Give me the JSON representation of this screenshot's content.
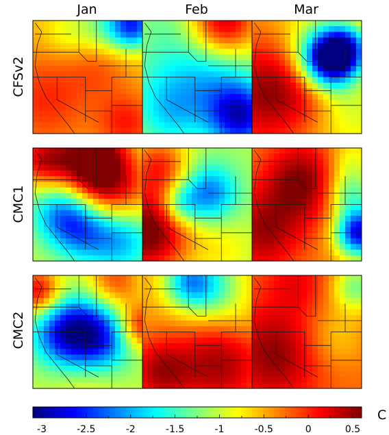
{
  "chart_data": {
    "type": "heatmap",
    "columns": [
      "Jan",
      "Feb",
      "Mar"
    ],
    "rows": [
      "CFSv2",
      "CMC1",
      "CMC2"
    ],
    "colorbar": {
      "ticks": [
        "-3",
        "-2.5",
        "-2",
        "-1.5",
        "-1",
        "-0.5",
        "0",
        "0.5"
      ],
      "tick_values": [
        -3,
        -2.5,
        -2,
        -1.5,
        -1,
        -0.5,
        0,
        0.5
      ],
      "vmin": -3.1,
      "vmax": 0.6,
      "unit": "C",
      "colormap": "jet"
    },
    "grid_size": [
      20,
      20
    ],
    "panels": [
      {
        "row": "CFSv2",
        "col": "Jan",
        "base": -0.55,
        "blobs": [
          {
            "x": 0.12,
            "y": 0.7,
            "r": 0.3,
            "a": 0.55
          },
          {
            "x": 0.85,
            "y": 0.9,
            "r": 0.18,
            "a": 0.6
          },
          {
            "x": 0.62,
            "y": 0.4,
            "r": 0.2,
            "a": 0.35
          },
          {
            "x": 0.92,
            "y": 0.04,
            "r": 0.15,
            "a": -1.8
          },
          {
            "x": 0.65,
            "y": 0.05,
            "r": 0.18,
            "a": -0.7
          },
          {
            "x": 0.3,
            "y": 0.12,
            "r": 0.15,
            "a": -0.3
          }
        ]
      },
      {
        "row": "CFSv2",
        "col": "Feb",
        "base": -1.0,
        "blobs": [
          {
            "x": 0.75,
            "y": 0.02,
            "r": 0.22,
            "a": 1.4
          },
          {
            "x": 0.2,
            "y": 0.05,
            "r": 0.22,
            "a": -0.25
          },
          {
            "x": 0.6,
            "y": 0.55,
            "r": 0.3,
            "a": -0.9
          },
          {
            "x": 0.9,
            "y": 0.85,
            "r": 0.2,
            "a": -1.6
          },
          {
            "x": 0.1,
            "y": 0.6,
            "r": 0.25,
            "a": -0.3
          },
          {
            "x": 0.25,
            "y": 0.85,
            "r": 0.2,
            "a": -0.5
          }
        ]
      },
      {
        "row": "CFSv2",
        "col": "Mar",
        "base": -0.45,
        "blobs": [
          {
            "x": 0.12,
            "y": 0.65,
            "r": 0.32,
            "a": 0.95
          },
          {
            "x": 0.55,
            "y": 0.58,
            "r": 0.2,
            "a": 0.4
          },
          {
            "x": 0.68,
            "y": 0.36,
            "r": 0.18,
            "a": -2.6
          },
          {
            "x": 0.85,
            "y": 0.25,
            "r": 0.15,
            "a": -1.8
          },
          {
            "x": 0.9,
            "y": 0.8,
            "r": 0.25,
            "a": -0.5
          },
          {
            "x": 0.5,
            "y": 0.05,
            "r": 0.2,
            "a": -0.3
          }
        ]
      },
      {
        "row": "CMC1",
        "col": "Jan",
        "base": -1.0,
        "blobs": [
          {
            "x": 0.65,
            "y": 0.4,
            "r": 0.3,
            "a": 1.6
          },
          {
            "x": 0.55,
            "y": 0.05,
            "r": 0.2,
            "a": 1.3
          },
          {
            "x": 0.1,
            "y": 0.1,
            "r": 0.18,
            "a": 1.2
          },
          {
            "x": 0.25,
            "y": 0.55,
            "r": 0.2,
            "a": -1.1
          },
          {
            "x": 0.45,
            "y": 0.7,
            "r": 0.2,
            "a": -1.4
          },
          {
            "x": 0.8,
            "y": 0.78,
            "r": 0.22,
            "a": -1.3
          }
        ]
      },
      {
        "row": "CMC1",
        "col": "Feb",
        "base": -1.1,
        "blobs": [
          {
            "x": 0.05,
            "y": 0.75,
            "r": 0.28,
            "a": 1.8
          },
          {
            "x": 0.15,
            "y": 0.15,
            "r": 0.2,
            "a": 1.0
          },
          {
            "x": 0.6,
            "y": 0.4,
            "r": 0.18,
            "a": -1.2
          },
          {
            "x": 0.35,
            "y": 0.5,
            "r": 0.12,
            "a": -0.8
          },
          {
            "x": 0.75,
            "y": 0.9,
            "r": 0.2,
            "a": 0.3
          }
        ]
      },
      {
        "row": "CMC1",
        "col": "Mar",
        "base": -0.35,
        "blobs": [
          {
            "x": 0.45,
            "y": 0.3,
            "r": 0.25,
            "a": 0.95
          },
          {
            "x": 0.1,
            "y": 0.75,
            "r": 0.25,
            "a": 0.8
          },
          {
            "x": 0.98,
            "y": 0.75,
            "r": 0.15,
            "a": -2.4
          },
          {
            "x": 0.9,
            "y": 0.4,
            "r": 0.15,
            "a": -1.0
          },
          {
            "x": 0.9,
            "y": 0.1,
            "r": 0.15,
            "a": -0.5
          }
        ]
      },
      {
        "row": "CMC2",
        "col": "Jan",
        "base": -1.0,
        "blobs": [
          {
            "x": 0.3,
            "y": 0.5,
            "r": 0.22,
            "a": -1.6
          },
          {
            "x": 0.62,
            "y": 0.55,
            "r": 0.22,
            "a": -1.4
          },
          {
            "x": 0.05,
            "y": 0.15,
            "r": 0.15,
            "a": 1.3
          },
          {
            "x": 0.75,
            "y": 0.05,
            "r": 0.18,
            "a": 0.9
          },
          {
            "x": 0.98,
            "y": 0.45,
            "r": 0.15,
            "a": 1.2
          },
          {
            "x": 0.5,
            "y": 0.98,
            "r": 0.22,
            "a": 0.3
          }
        ]
      },
      {
        "row": "CMC2",
        "col": "Feb",
        "base": -0.45,
        "blobs": [
          {
            "x": 0.6,
            "y": 0.1,
            "r": 0.22,
            "a": -1.2
          },
          {
            "x": 0.4,
            "y": 0.05,
            "r": 0.15,
            "a": -0.9
          },
          {
            "x": 0.7,
            "y": 0.78,
            "r": 0.3,
            "a": 0.9
          },
          {
            "x": 0.15,
            "y": 0.85,
            "r": 0.2,
            "a": 0.8
          },
          {
            "x": 0.9,
            "y": 0.4,
            "r": 0.15,
            "a": -0.2
          }
        ]
      },
      {
        "row": "CMC2",
        "col": "Mar",
        "base": -0.25,
        "blobs": [
          {
            "x": 0.2,
            "y": 0.7,
            "r": 0.3,
            "a": 0.8
          },
          {
            "x": 0.4,
            "y": 0.05,
            "r": 0.2,
            "a": 0.4
          },
          {
            "x": 0.95,
            "y": 0.1,
            "r": 0.15,
            "a": -1.0
          },
          {
            "x": 0.75,
            "y": 0.55,
            "r": 0.2,
            "a": -0.4
          }
        ]
      }
    ]
  }
}
